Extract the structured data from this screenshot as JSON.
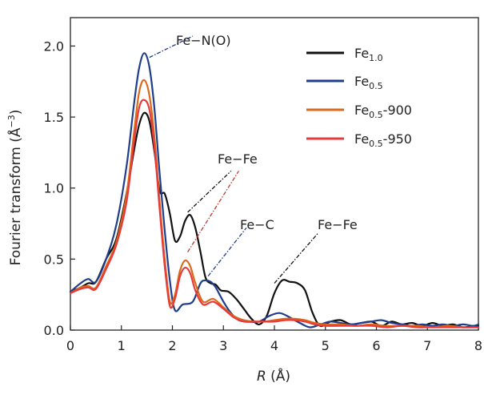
{
  "chart_data": {
    "type": "line",
    "xlabel_italic": "R",
    "xlabel_rest": " (Å)",
    "ylabel_main": "Fourier transform (Å",
    "ylabel_exp": "−3",
    "ylabel_close": ")",
    "xlim": [
      0,
      8
    ],
    "ylim": [
      0,
      2.2
    ],
    "xticks": [
      0,
      1,
      2,
      3,
      4,
      5,
      6,
      7,
      8
    ],
    "yticks": [
      0.0,
      0.5,
      1.0,
      1.5,
      2.0
    ],
    "xtick_labels": [
      "0",
      "1",
      "2",
      "3",
      "4",
      "5",
      "6",
      "7",
      "8"
    ],
    "ytick_labels": [
      "0.0",
      "0.5",
      "1.0",
      "1.5",
      "2.0"
    ],
    "legend_position": "top-right",
    "series": [
      {
        "name": "Fe1.0",
        "label_base": "Fe",
        "label_sub": "1.0",
        "label_suffix": "",
        "color": "#111111",
        "x": [
          0,
          0.2,
          0.35,
          0.5,
          0.7,
          0.9,
          1.1,
          1.25,
          1.35,
          1.45,
          1.55,
          1.65,
          1.75,
          1.85,
          1.95,
          2.05,
          2.15,
          2.25,
          2.35,
          2.45,
          2.55,
          2.65,
          2.75,
          2.85,
          2.95,
          3.1,
          3.25,
          3.4,
          3.55,
          3.7,
          3.85,
          4.0,
          4.15,
          4.3,
          4.45,
          4.6,
          4.75,
          4.9,
          5.1,
          5.3,
          5.5,
          5.7,
          5.9,
          6.1,
          6.3,
          6.5,
          6.7,
          6.9,
          7.1,
          7.3,
          7.5,
          7.7,
          7.9,
          8.0
        ],
        "y": [
          0.27,
          0.3,
          0.33,
          0.34,
          0.5,
          0.64,
          0.96,
          1.27,
          1.45,
          1.53,
          1.47,
          1.25,
          0.98,
          0.96,
          0.82,
          0.63,
          0.66,
          0.77,
          0.81,
          0.72,
          0.55,
          0.37,
          0.33,
          0.32,
          0.28,
          0.27,
          0.22,
          0.15,
          0.08,
          0.04,
          0.1,
          0.26,
          0.35,
          0.34,
          0.33,
          0.28,
          0.12,
          0.03,
          0.06,
          0.07,
          0.04,
          0.05,
          0.06,
          0.03,
          0.06,
          0.04,
          0.05,
          0.03,
          0.05,
          0.03,
          0.04,
          0.02,
          0.03,
          0.03
        ]
      },
      {
        "name": "Fe0.5",
        "label_base": "Fe",
        "label_sub": "0.5",
        "label_suffix": "",
        "color": "#1f3d8a",
        "x": [
          0,
          0.2,
          0.35,
          0.5,
          0.7,
          0.9,
          1.1,
          1.25,
          1.35,
          1.45,
          1.55,
          1.65,
          1.75,
          1.85,
          1.95,
          2.05,
          2.2,
          2.4,
          2.55,
          2.65,
          2.75,
          2.85,
          3.0,
          3.15,
          3.3,
          3.5,
          3.7,
          3.9,
          4.1,
          4.3,
          4.5,
          4.7,
          4.9,
          5.1,
          5.3,
          5.5,
          5.7,
          5.9,
          6.1,
          6.3,
          6.5,
          6.7,
          6.9,
          7.1,
          7.3,
          7.5,
          7.7,
          7.9,
          8.0
        ],
        "y": [
          0.27,
          0.33,
          0.36,
          0.34,
          0.5,
          0.74,
          1.15,
          1.6,
          1.85,
          1.95,
          1.85,
          1.55,
          1.1,
          0.7,
          0.35,
          0.14,
          0.18,
          0.2,
          0.33,
          0.35,
          0.34,
          0.3,
          0.2,
          0.12,
          0.07,
          0.06,
          0.06,
          0.1,
          0.12,
          0.09,
          0.05,
          0.02,
          0.04,
          0.06,
          0.05,
          0.04,
          0.05,
          0.06,
          0.07,
          0.05,
          0.04,
          0.03,
          0.04,
          0.03,
          0.04,
          0.03,
          0.04,
          0.03,
          0.04
        ]
      },
      {
        "name": "Fe0.5-900",
        "label_base": "Fe",
        "label_sub": "0.5",
        "label_suffix": "-900",
        "color": "#d96a1c",
        "x": [
          0,
          0.2,
          0.35,
          0.5,
          0.7,
          0.9,
          1.1,
          1.25,
          1.35,
          1.45,
          1.55,
          1.65,
          1.75,
          1.85,
          1.95,
          2.05,
          2.15,
          2.25,
          2.35,
          2.45,
          2.6,
          2.8,
          3.0,
          3.2,
          3.4,
          3.6,
          3.8,
          4.0,
          4.2,
          4.4,
          4.6,
          4.8,
          5.0,
          5.3,
          5.6,
          5.9,
          6.2,
          6.5,
          6.8,
          7.1,
          7.4,
          7.7,
          8.0
        ],
        "y": [
          0.26,
          0.3,
          0.31,
          0.3,
          0.45,
          0.62,
          0.95,
          1.4,
          1.68,
          1.76,
          1.65,
          1.35,
          0.9,
          0.5,
          0.2,
          0.25,
          0.42,
          0.49,
          0.45,
          0.33,
          0.2,
          0.22,
          0.16,
          0.1,
          0.07,
          0.06,
          0.06,
          0.07,
          0.08,
          0.08,
          0.07,
          0.05,
          0.04,
          0.04,
          0.03,
          0.04,
          0.03,
          0.03,
          0.03,
          0.02,
          0.03,
          0.02,
          0.02
        ]
      },
      {
        "name": "Fe0.5-950",
        "label_base": "Fe",
        "label_sub": "0.5",
        "label_suffix": "-950",
        "color": "#e83a3a",
        "x": [
          0,
          0.2,
          0.35,
          0.5,
          0.7,
          0.9,
          1.1,
          1.25,
          1.35,
          1.45,
          1.55,
          1.65,
          1.75,
          1.85,
          1.95,
          2.05,
          2.15,
          2.25,
          2.35,
          2.45,
          2.6,
          2.8,
          3.0,
          3.2,
          3.4,
          3.6,
          3.8,
          4.0,
          4.2,
          4.4,
          4.6,
          4.8,
          5.0,
          5.3,
          5.6,
          5.9,
          6.2,
          6.5,
          6.8,
          7.1,
          7.4,
          7.7,
          8.0
        ],
        "y": [
          0.26,
          0.29,
          0.3,
          0.29,
          0.43,
          0.6,
          0.9,
          1.33,
          1.57,
          1.62,
          1.55,
          1.28,
          0.85,
          0.45,
          0.17,
          0.22,
          0.38,
          0.44,
          0.4,
          0.28,
          0.18,
          0.2,
          0.15,
          0.09,
          0.06,
          0.06,
          0.06,
          0.06,
          0.07,
          0.07,
          0.06,
          0.04,
          0.03,
          0.03,
          0.03,
          0.03,
          0.02,
          0.03,
          0.02,
          0.02,
          0.02,
          0.02,
          0.02
        ]
      }
    ],
    "annotations": [
      {
        "name": "annotation-fe-n-o",
        "text": "Fe−N(O)",
        "color": "#1f3d8a",
        "from": [
          1.55,
          1.92
        ],
        "to": [
          2.4,
          2.07
        ]
      },
      {
        "name": "annotation-fe-fe-1",
        "text": "Fe−Fe",
        "color": "#111111",
        "from": [
          2.3,
          0.83
        ],
        "to": [
          3.15,
          1.12
        ]
      },
      {
        "name": "annotation-fe-fe-2",
        "text": "",
        "color": "#c0392b",
        "from": [
          2.3,
          0.55
        ],
        "to": [
          3.3,
          1.12
        ]
      },
      {
        "name": "annotation-fe-c",
        "text": "Fe−C",
        "color": "#1f3d8a",
        "from": [
          2.7,
          0.38
        ],
        "to": [
          3.45,
          0.72
        ]
      },
      {
        "name": "annotation-fe-fe-3",
        "text": "Fe−Fe",
        "color": "#111111",
        "from": [
          4.0,
          0.33
        ],
        "to": [
          4.85,
          0.68
        ]
      }
    ]
  }
}
